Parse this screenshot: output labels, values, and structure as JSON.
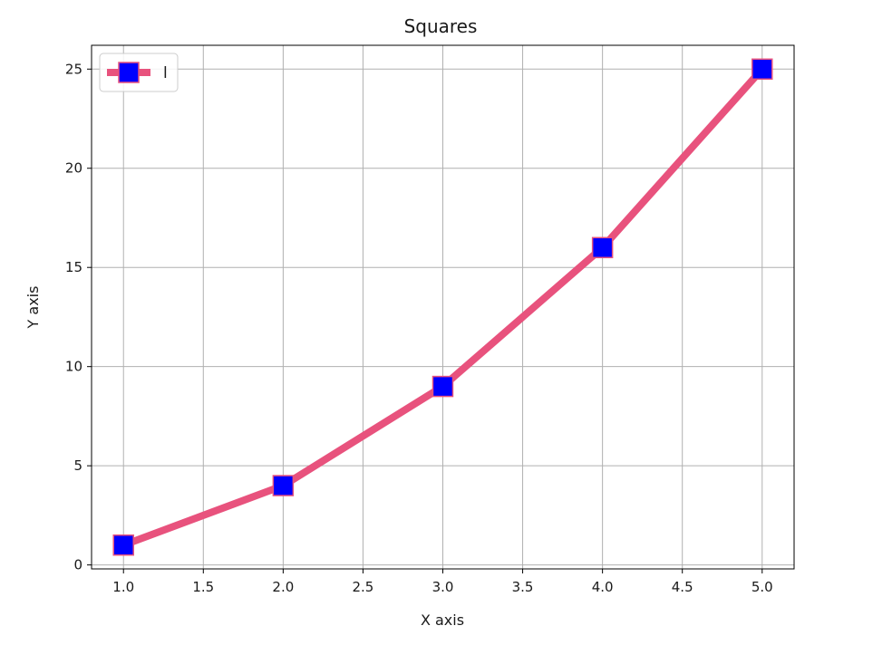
{
  "chart_data": {
    "type": "line",
    "title": "Squares",
    "xlabel": "X axis",
    "ylabel": "Y axis",
    "xlim": [
      0.8,
      5.2
    ],
    "ylim": [
      -0.2,
      26.2
    ],
    "x_ticks": [
      "1.0",
      "1.5",
      "2.0",
      "2.5",
      "3.0",
      "3.5",
      "4.0",
      "4.5",
      "5.0"
    ],
    "y_ticks": [
      "0",
      "5",
      "10",
      "15",
      "20",
      "25"
    ],
    "grid": true,
    "legend_position": "upper-left",
    "series": [
      {
        "name": "l",
        "x": [
          1,
          2,
          3,
          4,
          5
        ],
        "y": [
          1,
          4,
          9,
          16,
          25
        ],
        "line_color": "#e8527d",
        "marker": "square",
        "marker_face_color": "#0000ff",
        "marker_edge_color": "#e8527d"
      }
    ]
  }
}
